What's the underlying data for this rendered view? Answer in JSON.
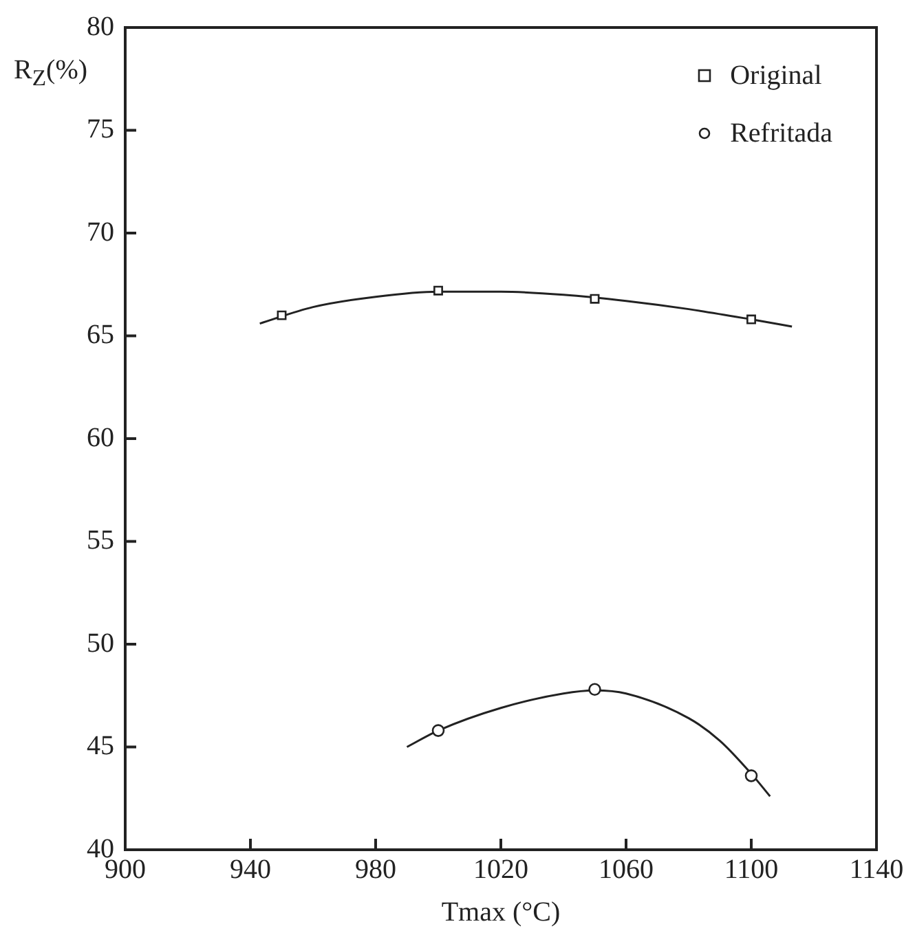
{
  "chart_data": {
    "type": "scatter",
    "xlabel": "Tmax (°C)",
    "ylabel": "R$_{Z}$(%)",
    "xlim": [
      900,
      1140
    ],
    "xticks": [
      900,
      940,
      980,
      1020,
      1060,
      1100,
      1140
    ],
    "ylim": [
      40,
      80
    ],
    "yticks": [
      40,
      45,
      50,
      55,
      60,
      65,
      70,
      75,
      80
    ],
    "grid": false,
    "legend": "top right",
    "series": [
      {
        "name": "Original",
        "marker": "square",
        "color": "#222222",
        "x": [
          950,
          1000,
          1050,
          1100
        ],
        "values": [
          66.0,
          67.2,
          66.8,
          65.8
        ]
      },
      {
        "name": "Refritada",
        "marker": "circle",
        "color": "#222222",
        "x": [
          1000,
          1050,
          1100
        ],
        "values": [
          45.8,
          47.8,
          43.6
        ]
      },
      {
        "type": "line",
        "marker": "none",
        "color": "#222222",
        "x": [
          943,
          960,
          980,
          1000,
          1020,
          1040,
          1060,
          1080,
          1100,
          1113
        ],
        "values": [
          65.6,
          66.4,
          66.9,
          67.15,
          67.15,
          67.0,
          66.7,
          66.3,
          65.8,
          65.45
        ]
      },
      {
        "type": "line",
        "marker": "none",
        "color": "#222222",
        "x": [
          990,
          1000,
          1020,
          1040,
          1050,
          1060,
          1080,
          1090,
          1100,
          1106
        ],
        "values": [
          45.0,
          45.8,
          46.9,
          47.6,
          47.75,
          47.6,
          46.4,
          45.3,
          43.7,
          42.6
        ]
      }
    ]
  }
}
